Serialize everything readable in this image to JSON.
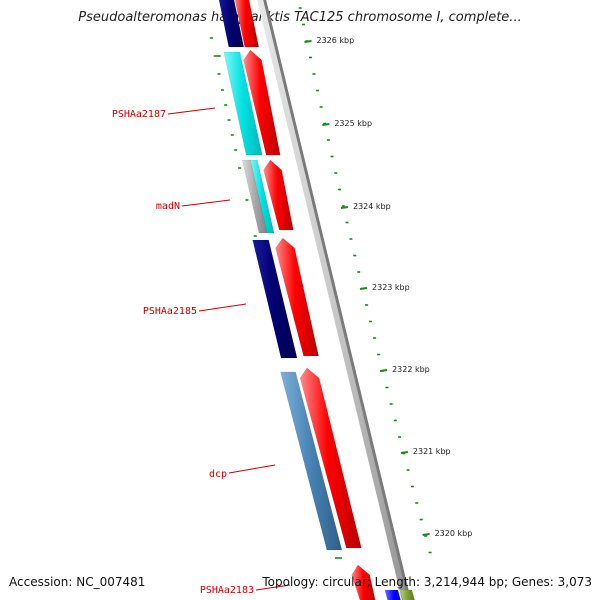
{
  "title": "Pseudoalteromonas haloplanktis TAC125 chromosome I, complete...",
  "footer": {
    "accession": "Accession: NC_007481",
    "topology": "Topology: circular; Length: 3,214,944 bp; Genes: 3,073"
  },
  "ruler_labels": [
    "2326 kbp",
    "2325 kbp",
    "2324 kbp",
    "2323 kbp",
    "2322 kbp",
    "2321 kbp",
    "2320 kbp"
  ],
  "gene_labels": [
    "PSHAa2187",
    "madN",
    "PSHAa2185",
    "dcp",
    "PSHAa2183"
  ],
  "colors": {
    "navy": "#000080",
    "cyan": "#00e5e5",
    "gray": "#a8a8a8",
    "steelblue": "#4682b4",
    "red": "#ff0000",
    "label_red": "#cc0000",
    "tick_green": "#1a8a1a"
  }
}
